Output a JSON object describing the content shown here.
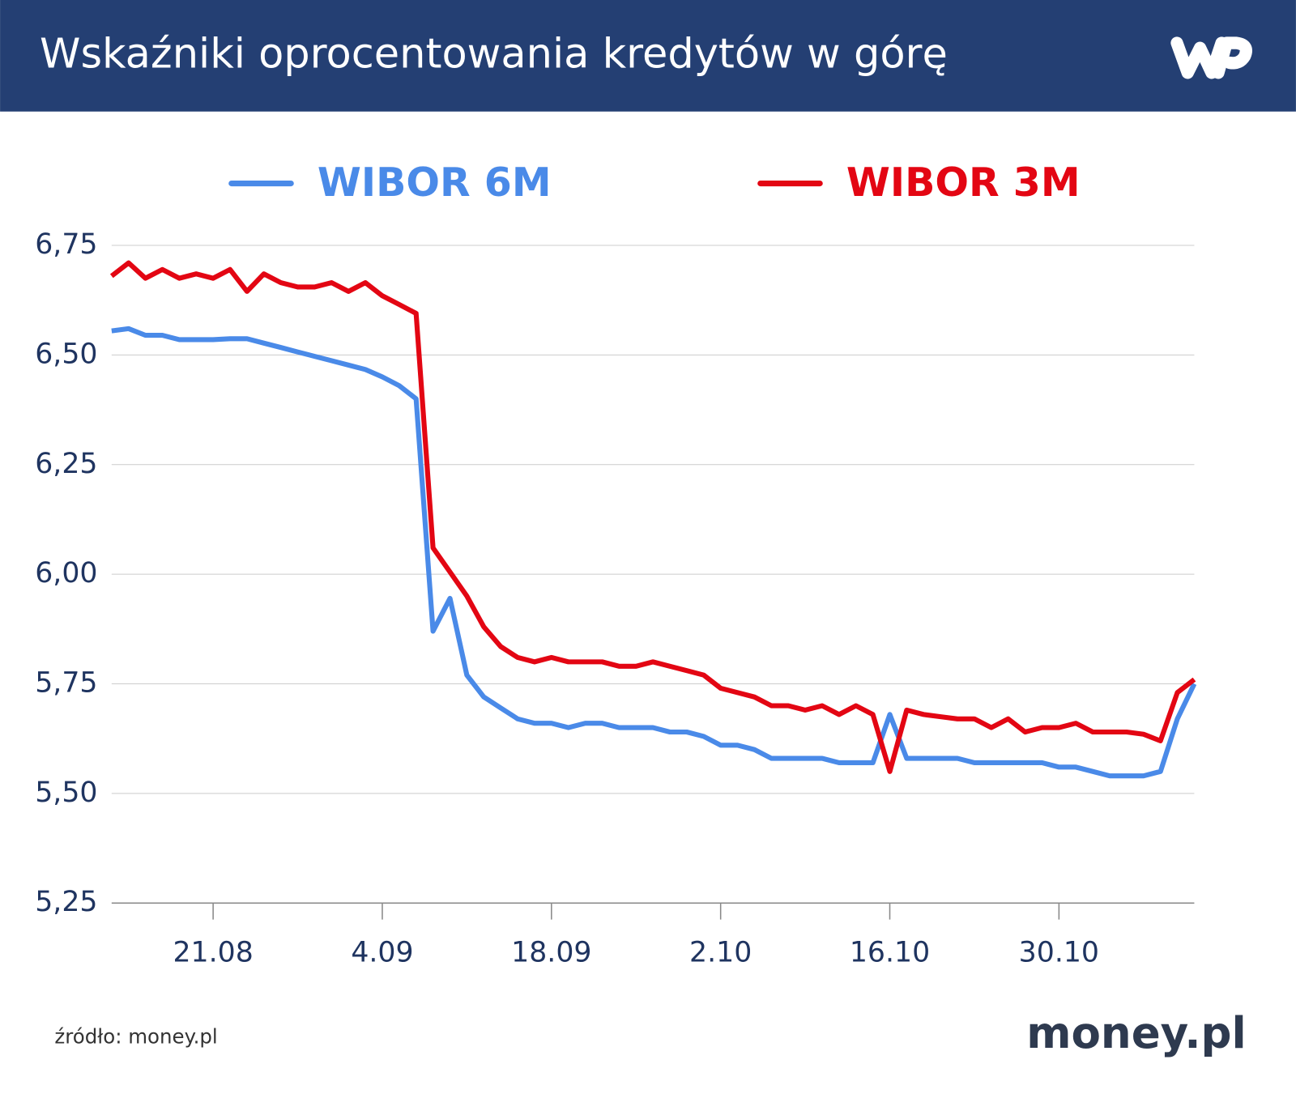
{
  "chart_data": {
    "type": "line",
    "title": "Wskaźniki oprocentowania kredytów w górę",
    "source": "źródło: money.pl",
    "brand": "money.pl",
    "legend": "top",
    "grid": true,
    "categories": [
      null,
      null,
      null,
      null,
      null,
      null,
      "21.08",
      null,
      null,
      null,
      null,
      null,
      null,
      null,
      null,
      null,
      "4.09",
      null,
      null,
      null,
      null,
      null,
      null,
      null,
      null,
      null,
      "18.09",
      null,
      null,
      null,
      null,
      null,
      null,
      null,
      null,
      null,
      "2.10",
      null,
      null,
      null,
      null,
      null,
      null,
      null,
      null,
      null,
      "16.10",
      null,
      null,
      null,
      null,
      null,
      null,
      null,
      null,
      null,
      "30.10",
      null,
      null,
      null,
      null,
      null,
      null,
      null,
      null
    ],
    "series": [
      {
        "name": "WIBOR 6M",
        "color": "#4a8ae8",
        "values": [
          6.555,
          6.56,
          6.545,
          6.545,
          6.535,
          6.535,
          6.535,
          6.537,
          6.537,
          6.527,
          6.517,
          6.507,
          6.497,
          6.487,
          6.477,
          6.467,
          6.45,
          6.43,
          6.4,
          5.87,
          5.945,
          5.77,
          5.72,
          5.695,
          5.67,
          5.66,
          5.66,
          5.65,
          5.66,
          5.66,
          5.65,
          5.65,
          5.65,
          5.64,
          5.64,
          5.63,
          5.61,
          5.61,
          5.6,
          5.58,
          5.58,
          5.58,
          5.58,
          5.57,
          5.57,
          5.57,
          5.68,
          5.58,
          5.58,
          5.58,
          5.58,
          5.57,
          5.57,
          5.57,
          5.57,
          5.57,
          5.56,
          5.56,
          5.55,
          5.54,
          5.54,
          5.54,
          5.55,
          5.67,
          5.75
        ]
      },
      {
        "name": "WIBOR 3M",
        "color": "#e30613",
        "values": [
          6.68,
          6.71,
          6.675,
          6.695,
          6.675,
          6.685,
          6.675,
          6.695,
          6.645,
          6.685,
          6.665,
          6.655,
          6.655,
          6.665,
          6.645,
          6.665,
          6.635,
          6.615,
          6.595,
          6.06,
          6.005,
          5.95,
          5.88,
          5.835,
          5.81,
          5.8,
          5.81,
          5.8,
          5.8,
          5.8,
          5.79,
          5.79,
          5.8,
          5.79,
          5.78,
          5.77,
          5.74,
          5.73,
          5.72,
          5.7,
          5.7,
          5.69,
          5.7,
          5.68,
          5.7,
          5.68,
          5.55,
          5.69,
          5.68,
          5.675,
          5.67,
          5.67,
          5.65,
          5.67,
          5.64,
          5.65,
          5.65,
          5.66,
          5.64,
          5.64,
          5.64,
          5.635,
          5.62,
          5.73,
          5.76
        ]
      }
    ],
    "ylim": [
      5.25,
      6.75
    ],
    "yticks": [
      {
        "value": 5.25,
        "label": "5,25"
      },
      {
        "value": 5.5,
        "label": "5,50"
      },
      {
        "value": 5.75,
        "label": "5,75"
      },
      {
        "value": 6,
        "label": "6,00"
      },
      {
        "value": 6.25,
        "label": "6,25"
      },
      {
        "value": 6.5,
        "label": "6,50"
      },
      {
        "value": 6.75,
        "label": "6,75"
      }
    ]
  }
}
